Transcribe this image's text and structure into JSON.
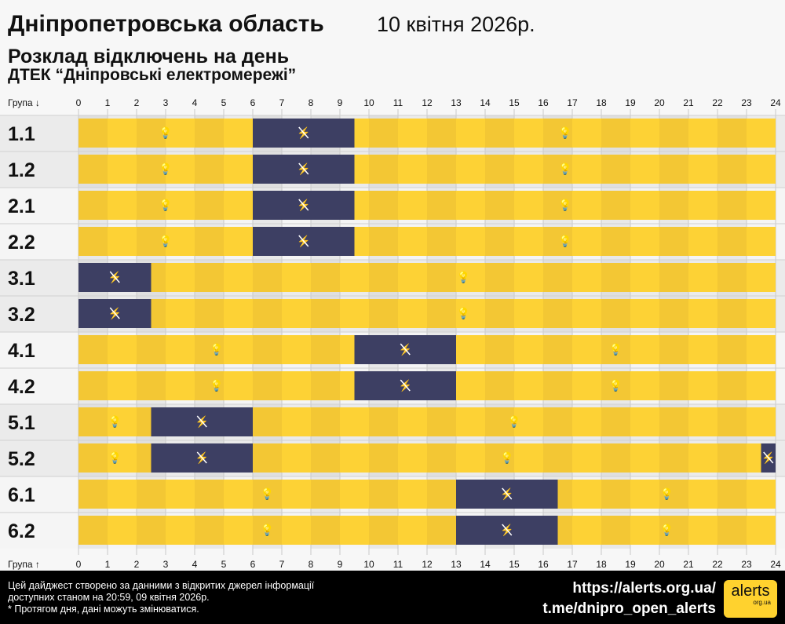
{
  "header": {
    "region": "Дніпропетровська область",
    "date": "10 квітня 2026р.",
    "subtitle": "Розклад відключень на день",
    "company": "ДТЕК “Дніпровські електромережі”"
  },
  "chart_data": {
    "type": "timeline",
    "x_axis_label_top": "Група ↓",
    "x_axis_label_bottom": "Група ↑",
    "x_ticks": [
      "0",
      "1",
      "2",
      "3",
      "4",
      "5",
      "6",
      "7",
      "8",
      "9",
      "10",
      "11",
      "12",
      "13",
      "14",
      "15",
      "16",
      "17",
      "18",
      "19",
      "20",
      "21",
      "22",
      "23",
      "24"
    ],
    "xlim": [
      0,
      24
    ],
    "colors": {
      "power_on": "#fdd235",
      "power_on_alt": "#f3c734",
      "power_off": "#3d3f63"
    },
    "groups": [
      {
        "name": "1.1",
        "off": [
          [
            6,
            9.5
          ]
        ]
      },
      {
        "name": "1.2",
        "off": [
          [
            6,
            9.5
          ]
        ]
      },
      {
        "name": "2.1",
        "off": [
          [
            6,
            9.5
          ]
        ]
      },
      {
        "name": "2.2",
        "off": [
          [
            6,
            9.5
          ]
        ]
      },
      {
        "name": "3.1",
        "off": [
          [
            0,
            2.5
          ]
        ]
      },
      {
        "name": "3.2",
        "off": [
          [
            0,
            2.5
          ]
        ]
      },
      {
        "name": "4.1",
        "off": [
          [
            9.5,
            13
          ]
        ]
      },
      {
        "name": "4.2",
        "off": [
          [
            9.5,
            13
          ]
        ]
      },
      {
        "name": "5.1",
        "off": [
          [
            2.5,
            6
          ]
        ]
      },
      {
        "name": "5.2",
        "off": [
          [
            2.5,
            6
          ],
          [
            23.5,
            24
          ]
        ]
      },
      {
        "name": "6.1",
        "off": [
          [
            13,
            16.5
          ]
        ]
      },
      {
        "name": "6.2",
        "off": [
          [
            13,
            16.5
          ]
        ]
      }
    ]
  },
  "footer": {
    "note1": "Цей дайджест створено за данними з відкритих джерел інформації",
    "note2": "доступних станом на 20:59, 09 квітня 2026р.",
    "note3": "* Протягом дня, дані можуть змінюватися.",
    "link1": "https://alerts.org.ua/",
    "link2": "t.me/dnipro_open_alerts",
    "logo_text": "alerts",
    "logo_sub": "org.ua"
  }
}
